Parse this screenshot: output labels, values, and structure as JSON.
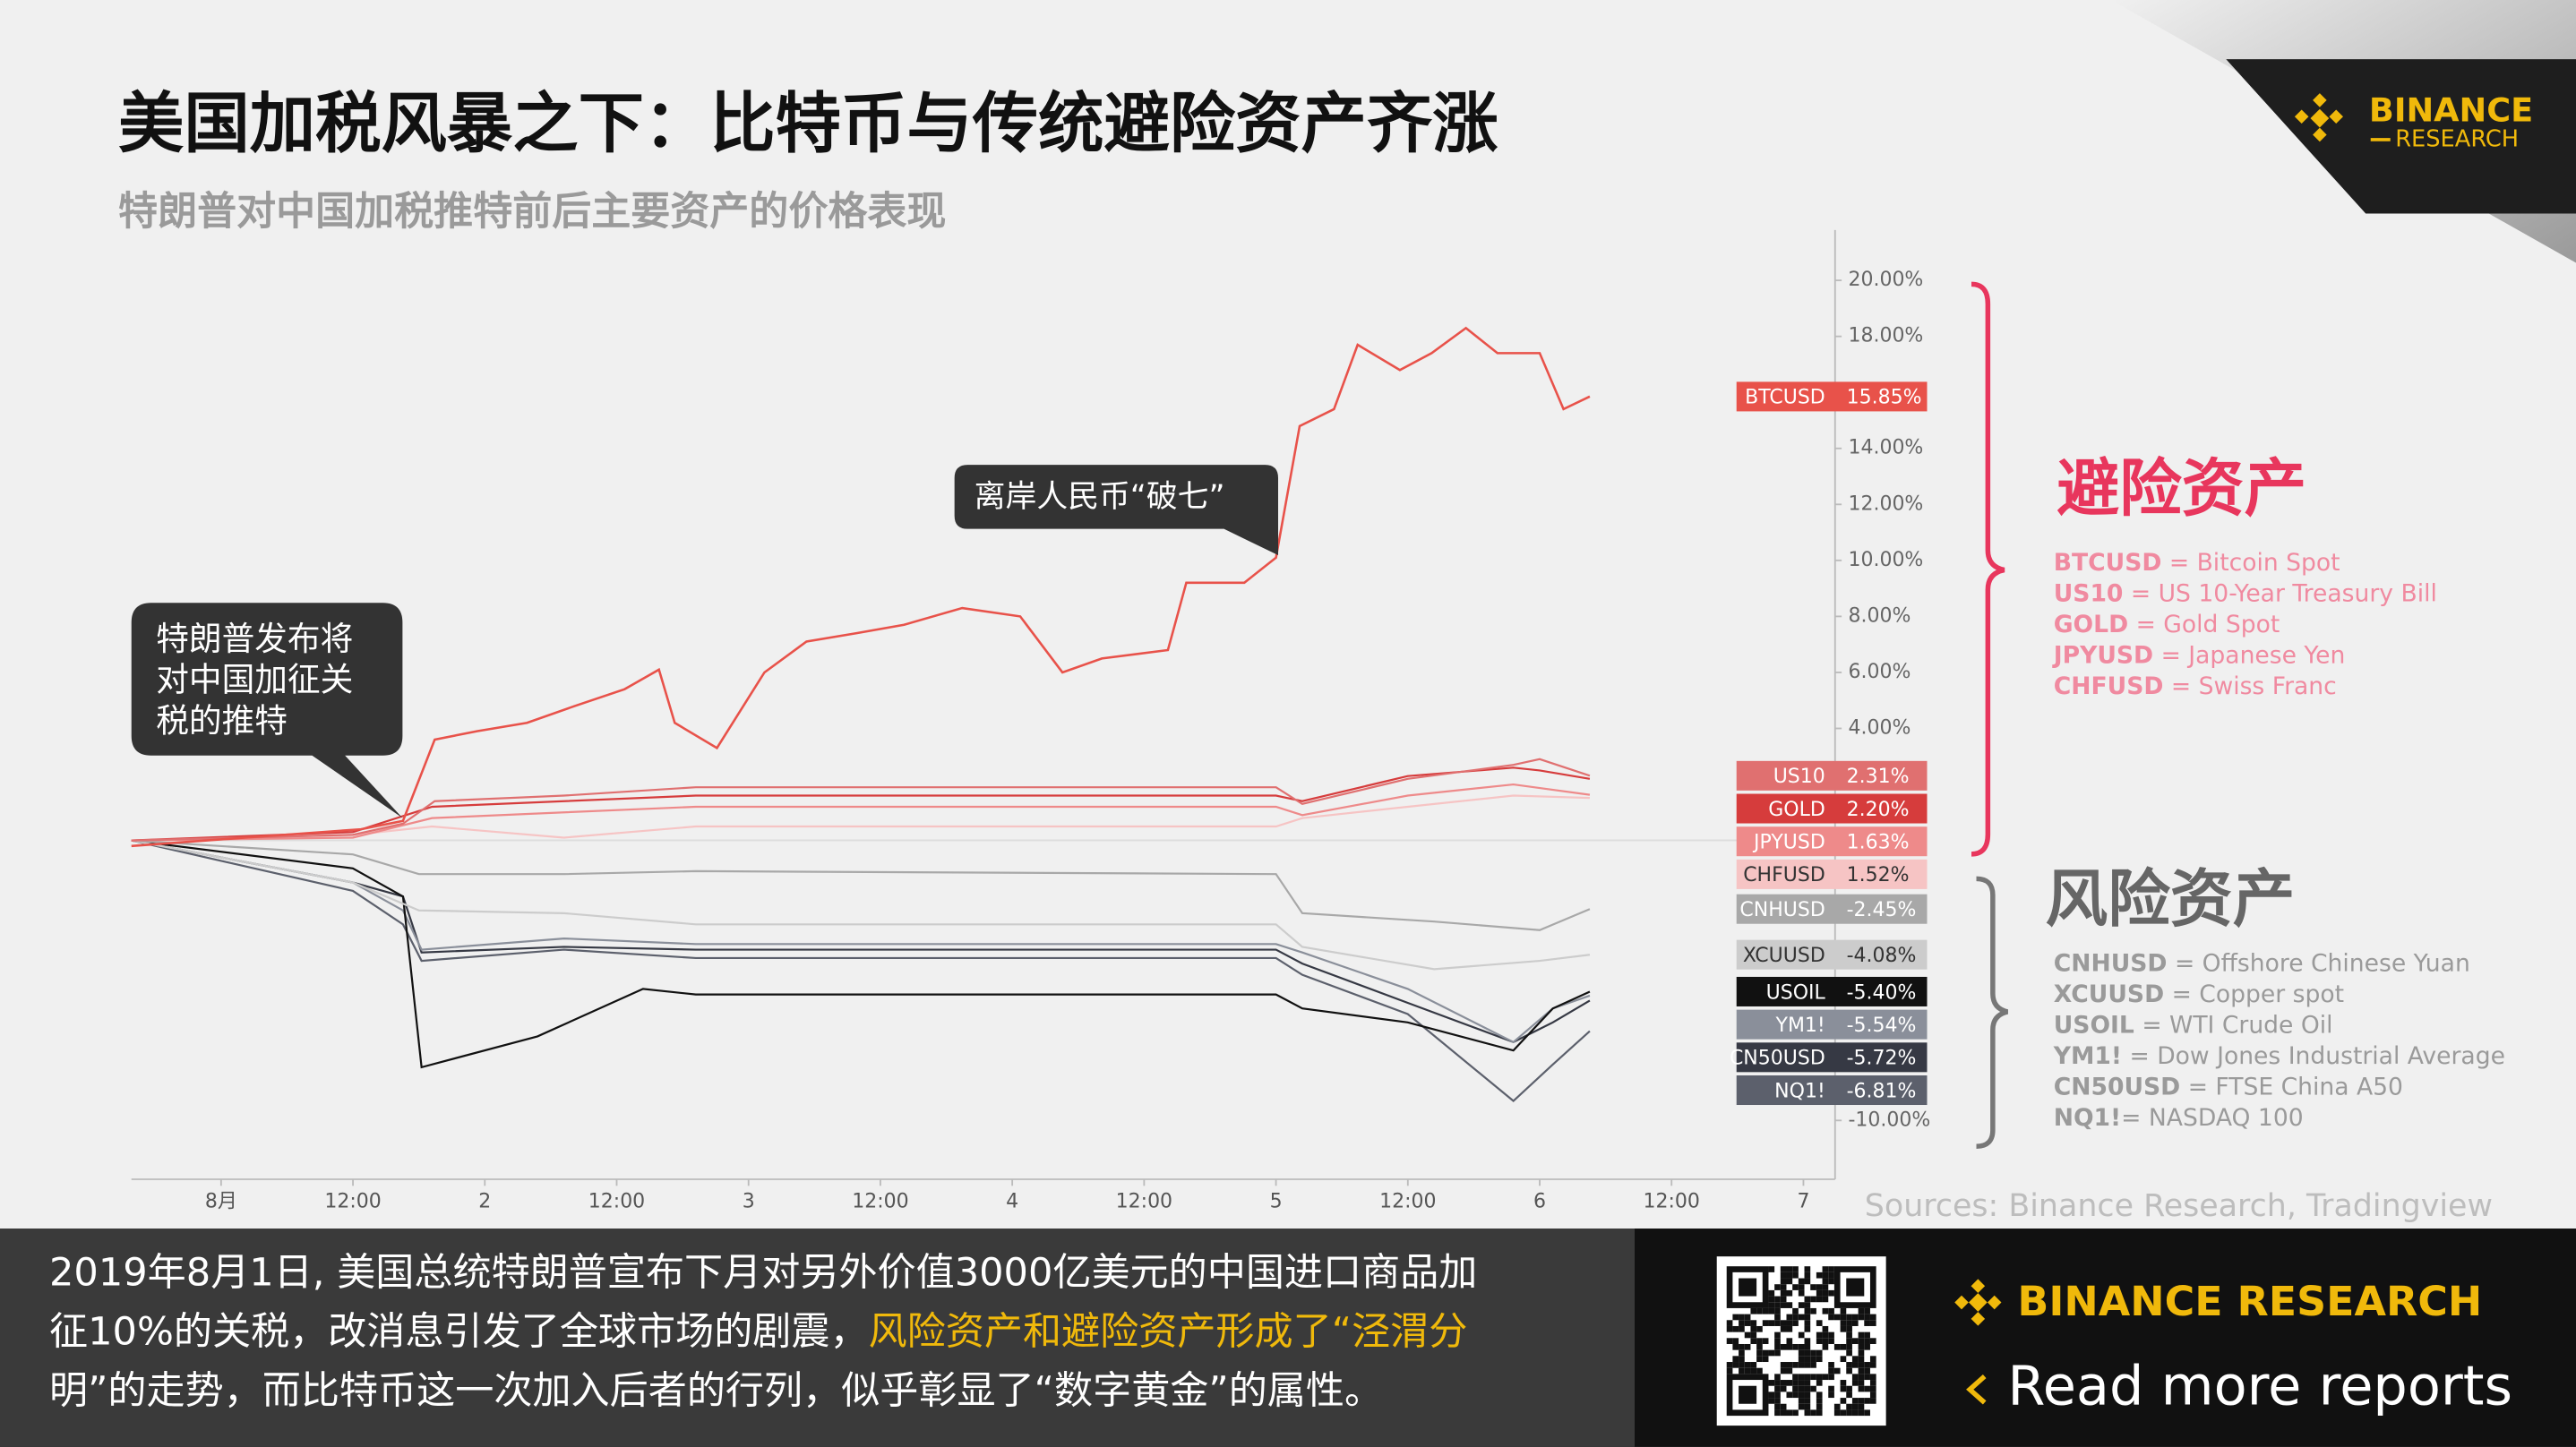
{
  "chart_data": {
    "type": "line",
    "title": "美国加税风暴之下：比特币与传统避险资产齐涨",
    "subtitle": "特朗普对中国加税推特前后主要资产的价格表现",
    "xlim": [
      0.66,
      7.12
    ],
    "xticks": [
      {
        "value": 1,
        "label": "8月"
      },
      {
        "value": 1.5,
        "label": "12:00"
      },
      2,
      {
        "value": 2.5,
        "label": "12:00"
      },
      3,
      {
        "value": 3.5,
        "label": "12:00"
      },
      4,
      {
        "value": 4.5,
        "label": "12:00"
      },
      5,
      {
        "value": 5.5,
        "label": "12:00"
      },
      6,
      {
        "value": 6.5,
        "label": "12:00"
      },
      7
    ],
    "ylim": [
      -12.1,
      21.8
    ],
    "yticks": [
      {
        "value": 20,
        "label": "20.00%"
      },
      {
        "value": 18,
        "label": "18.00%"
      },
      {
        "value": 16,
        "label": "16.00%"
      },
      {
        "value": 14,
        "label": "14.00%"
      },
      {
        "value": 12,
        "label": "12.00%"
      },
      {
        "value": 10,
        "label": "10.00%"
      },
      {
        "value": 8,
        "label": "8.00%"
      },
      {
        "value": 6,
        "label": "6.00%"
      },
      {
        "value": 4,
        "label": "4.00%"
      },
      {
        "value": -10,
        "label": "-10.00%"
      }
    ],
    "series": [
      {
        "name": "BTCUSD",
        "color": "#e8524a",
        "value_label": "15.85%",
        "x": [
          0.66,
          1.09,
          1.53,
          1.69,
          1.81,
          1.97,
          2.16,
          2.34,
          2.53,
          2.66,
          2.72,
          2.88,
          3.06,
          3.22,
          3.41,
          3.59,
          3.81,
          4.03,
          4.19,
          4.34,
          4.59,
          4.66,
          4.88,
          5.0,
          5.09,
          5.22,
          5.31,
          5.47,
          5.59,
          5.72,
          5.84,
          6.0,
          6.09,
          6.19
        ],
        "values": [
          -0.2,
          0.1,
          0.4,
          0.7,
          3.6,
          3.9,
          4.2,
          4.8,
          5.4,
          6.1,
          4.2,
          3.3,
          6.0,
          7.1,
          7.4,
          7.7,
          8.3,
          8.0,
          6.0,
          6.5,
          6.8,
          9.2,
          9.2,
          10.1,
          14.8,
          15.4,
          17.7,
          16.8,
          17.4,
          18.3,
          17.4,
          17.4,
          15.4,
          15.85
        ]
      },
      {
        "name": "US10",
        "color": "#e07070",
        "value_label": "2.31%",
        "x": [
          0.66,
          1.5,
          1.69,
          1.81,
          2.3,
          2.8,
          5.0,
          5.1,
          5.5,
          5.9,
          6.0,
          6.19
        ],
        "values": [
          0,
          0.2,
          0.6,
          1.4,
          1.6,
          1.9,
          1.9,
          1.3,
          2.2,
          2.7,
          2.9,
          2.31
        ]
      },
      {
        "name": "GOLD",
        "color": "#d63c3c",
        "value_label": "2.20%",
        "x": [
          0.66,
          1.5,
          1.8,
          2.3,
          2.8,
          5.0,
          5.1,
          5.5,
          5.9,
          6.0,
          6.19
        ],
        "values": [
          0,
          0.3,
          1.2,
          1.4,
          1.6,
          1.6,
          1.4,
          2.3,
          2.6,
          2.5,
          2.2
        ]
      },
      {
        "name": "JPYUSD",
        "color": "#ee8a8a",
        "value_label": "1.63%",
        "x": [
          0.66,
          1.5,
          1.8,
          2.3,
          2.8,
          5.0,
          5.1,
          5.5,
          5.9,
          6.19
        ],
        "values": [
          0,
          0.1,
          0.8,
          1.0,
          1.2,
          1.2,
          0.9,
          1.6,
          2.0,
          1.63
        ]
      },
      {
        "name": "CHFUSD",
        "color": "#f6c4c4",
        "value_label": "1.52%",
        "x": [
          0.66,
          1.5,
          1.8,
          2.3,
          2.8,
          5.0,
          5.1,
          5.5,
          5.9,
          6.19
        ],
        "values": [
          0,
          0.2,
          0.5,
          0.1,
          0.5,
          0.5,
          0.8,
          1.2,
          1.6,
          1.52
        ]
      },
      {
        "name": "CNHUSD",
        "color": "#a8a8a8",
        "value_label": "-2.45%",
        "x": [
          0.66,
          1.5,
          1.75,
          2.3,
          2.8,
          5.0,
          5.1,
          5.6,
          6.0,
          6.19
        ],
        "values": [
          0,
          -0.5,
          -1.2,
          -1.2,
          -1.1,
          -1.2,
          -2.6,
          -2.9,
          -3.2,
          -2.45
        ]
      },
      {
        "name": "XCUUSD",
        "color": "#cccccc",
        "value_label": "-4.08%",
        "x": [
          0.66,
          1.5,
          1.75,
          2.3,
          2.8,
          5.0,
          5.1,
          5.6,
          6.0,
          6.19
        ],
        "values": [
          0,
          -1.5,
          -2.5,
          -2.6,
          -3.0,
          -3.0,
          -3.8,
          -4.6,
          -4.3,
          -4.08
        ]
      },
      {
        "name": "USOIL",
        "color": "#111111",
        "value_label": "-5.40%",
        "x": [
          0.66,
          1.5,
          1.69,
          1.76,
          2.2,
          2.6,
          2.8,
          5.0,
          5.1,
          5.5,
          5.9,
          6.05,
          6.19
        ],
        "values": [
          0,
          -1.0,
          -2.0,
          -8.1,
          -7.0,
          -5.3,
          -5.5,
          -5.5,
          -6.0,
          -6.5,
          -7.5,
          -6.0,
          -5.4
        ]
      },
      {
        "name": "YM1!",
        "color": "#8a8f9a",
        "value_label": "-5.54%",
        "x": [
          0.66,
          1.5,
          1.69,
          1.76,
          2.3,
          2.8,
          5.0,
          5.1,
          5.5,
          5.9,
          6.05,
          6.19
        ],
        "values": [
          0,
          -1.5,
          -2.5,
          -3.9,
          -3.5,
          -3.7,
          -3.7,
          -4.0,
          -5.3,
          -7.2,
          -6.0,
          -5.54
        ]
      },
      {
        "name": "CN50USD",
        "color": "#363944",
        "value_label": "-5.72%",
        "x": [
          0.66,
          1.5,
          1.69,
          1.76,
          2.3,
          2.8,
          5.0,
          5.1,
          5.5,
          5.9,
          6.05,
          6.19
        ],
        "values": [
          0,
          -1.5,
          -2.0,
          -4.0,
          -3.8,
          -3.9,
          -3.9,
          -4.4,
          -5.8,
          -7.2,
          -6.5,
          -5.72
        ]
      },
      {
        "name": "NQ1!",
        "color": "#5c606c",
        "value_label": "-6.81%",
        "x": [
          0.66,
          1.5,
          1.69,
          1.76,
          2.3,
          2.8,
          5.0,
          5.1,
          5.5,
          5.9,
          6.05,
          6.19
        ],
        "values": [
          0,
          -1.8,
          -3.0,
          -4.3,
          -3.9,
          -4.2,
          -4.2,
          -4.8,
          -6.2,
          -9.3,
          -8.0,
          -6.81
        ]
      }
    ],
    "annotations": [
      {
        "lines": [
          "特朗普发布将",
          "对中国加征关",
          "税的推特"
        ]
      },
      {
        "lines": [
          "离岸人民币“破七”"
        ]
      }
    ],
    "legend_groups": [
      {
        "title": "避险资产",
        "items": [
          {
            "code": "BTCUSD",
            "desc": " = Bitcoin Spot"
          },
          {
            "code": "US10",
            "desc": " = US 10-Year Treasury Bill"
          },
          {
            "code": "GOLD",
            "desc": " = Gold Spot"
          },
          {
            "code": "JPYUSD",
            "desc": " = Japanese Yen"
          },
          {
            "code": "CHFUSD",
            "desc": " = Swiss Franc"
          }
        ]
      },
      {
        "title": "风险资产",
        "items": [
          {
            "code": "CNHUSD",
            "desc": " = Offshore Chinese Yuan"
          },
          {
            "code": "XCUUSD",
            "desc": " = Copper spot"
          },
          {
            "code": "USOIL",
            "desc": " = WTI Crude Oil"
          },
          {
            "code": "YM1!",
            "desc": " = Dow Jones Industrial Average"
          },
          {
            "code": "CN50USD",
            "desc": " = FTSE China A50"
          },
          {
            "code": "NQ1!",
            "desc": "= NASDAQ 100"
          }
        ]
      }
    ],
    "source": "Sources: Binance Research, Tradingview"
  },
  "logo": {
    "brand": "BINANCE",
    "sub": "RESEARCH"
  },
  "footer": {
    "lines": [
      [
        {
          "text": "2019年8月1日, 美国总统特朗普宣布下月对另外价值3000亿美元的中国进口商品加"
        }
      ],
      [
        {
          "text": "征10%的关税，改消息引发了全球市场的剧震，"
        },
        {
          "text": "风险资产和避险资产形成了“泾渭分",
          "highlight": true
        }
      ],
      [
        {
          "text": "明”的走势，而比特币这一次加入后者的行列，似乎彰显了“数字黄金”的属性。"
        }
      ]
    ],
    "brand": "BINANCE RESEARCH",
    "cta": "Read more reports"
  }
}
